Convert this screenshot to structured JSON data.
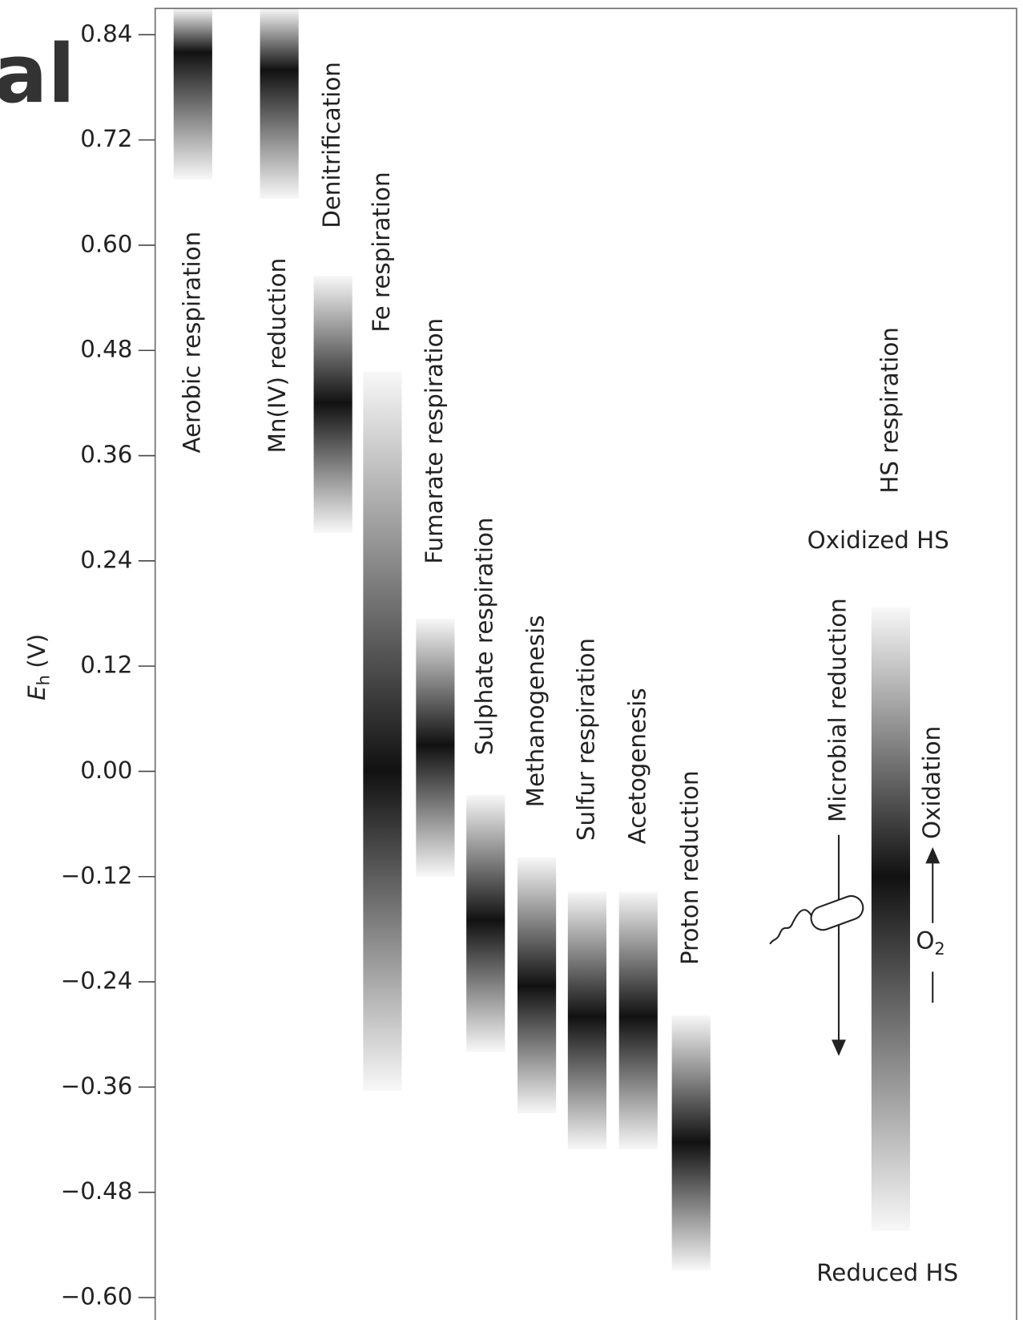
{
  "chart_data": {
    "type": "range",
    "fragment": "al",
    "y_label": "E",
    "y_label_sub": "h",
    "y_label_unit": "(V)",
    "ylim": [
      -0.615,
      0.87
    ],
    "yticks": [
      0.84,
      0.72,
      {
        "value": 0.6,
        "label": "0.60"
      },
      0.48,
      0.36,
      0.24,
      0.12,
      {
        "value": 0,
        "label": "0.00"
      },
      {
        "value": -0.12,
        "label": "−0.12"
      },
      {
        "value": -0.24,
        "label": "−0.24"
      },
      {
        "value": -0.36,
        "label": "−0.36"
      },
      {
        "value": -0.48,
        "label": "−0.48"
      },
      {
        "value": -0.6,
        "label": "−0.60"
      }
    ],
    "bands": [
      {
        "name": "Aerobic respiration",
        "high": 0.87,
        "low": 0.675,
        "peak": 0.82
      },
      {
        "name": "Mn(IV) reduction",
        "high": 0.87,
        "low": 0.653,
        "peak": 0.8
      },
      {
        "name": "Denitrification",
        "high": 0.565,
        "low": 0.272,
        "peak": 0.42
      },
      {
        "name": "Fe respiration",
        "high": 0.456,
        "low": -0.364,
        "peak": 0.0
      },
      {
        "name": "Fumarate respiration",
        "high": 0.174,
        "low": -0.12,
        "peak": 0.03
      },
      {
        "name": "Sulphate respiration",
        "high": -0.027,
        "low": -0.32,
        "peak": -0.17
      },
      {
        "name": "Methanogenesis",
        "high": -0.098,
        "low": -0.39,
        "peak": -0.245
      },
      {
        "name": "Sulfur respiration",
        "high": -0.137,
        "low": -0.431,
        "peak": -0.28
      },
      {
        "name": "Acetogenesis",
        "high": -0.137,
        "low": -0.431,
        "peak": -0.28
      },
      {
        "name": "Proton reduction",
        "high": -0.278,
        "low": -0.569,
        "peak": -0.423
      },
      {
        "name": "HS respiration",
        "high": 0.187,
        "low": -0.524,
        "peak": -0.12
      }
    ],
    "annotations": {
      "oxidized": "Oxidized HS",
      "reduced": "Reduced HS",
      "reduction": "Microbial reduction",
      "oxidation": "Oxidation",
      "o2": "O",
      "o2_sub": "2"
    }
  }
}
